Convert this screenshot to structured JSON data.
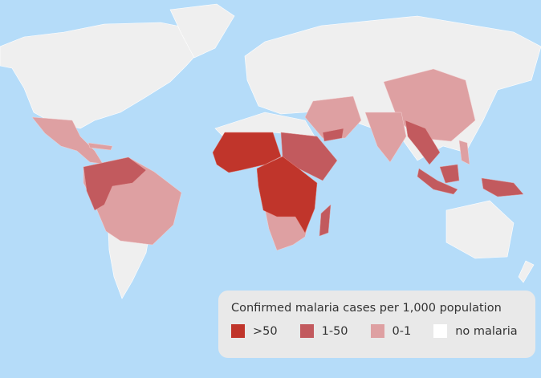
{
  "colors": {
    "ocean": "#b5dcf9",
    "land": "#efefef",
    "high": "#c0352b",
    "mid": "#c25a5e",
    "low": "#dea0a2",
    "none": "#ffffff"
  },
  "legend": {
    "title": "Confirmed malaria cases per 1,000 population",
    "items": [
      {
        "label": ">50",
        "color": "#c0352b"
      },
      {
        "label": "1-50",
        "color": "#c25a5e"
      },
      {
        "label": "0-1",
        "color": "#dea0a2"
      },
      {
        "label": "no malaria",
        "color": "#ffffff"
      }
    ]
  }
}
